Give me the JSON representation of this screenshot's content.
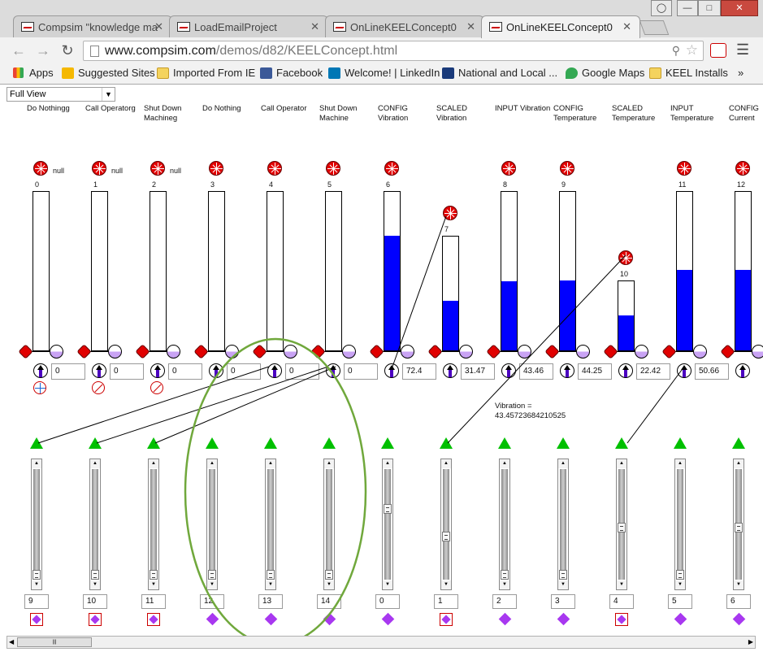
{
  "browser": {
    "tabs": [
      {
        "title": "Compsim \"knowledge ma",
        "active": false
      },
      {
        "title": "LoadEmailProject",
        "active": false
      },
      {
        "title": "OnLineKEELConcept0",
        "active": false
      },
      {
        "title": "OnLineKEELConcept0",
        "active": true
      }
    ],
    "url_host": "www.compsim.com",
    "url_path": "/demos/d82/KEELConcept.html",
    "bookmarks": [
      "Apps",
      "Suggested Sites",
      "Imported From IE",
      "Facebook",
      "Welcome! | LinkedIn",
      "National and Local ...",
      "Google Maps",
      "KEEL Installs"
    ],
    "bookmarks_more": "»"
  },
  "page": {
    "view_select": "Full View",
    "vibration_label": "Vibration =",
    "vibration_value": "43.45723684210525",
    "columns": [
      {
        "header": [
          "Do Nothingg"
        ],
        "index": "0",
        "null_label": "null",
        "fill": 0,
        "value": "0",
        "status": "plus",
        "bottom_number": "9",
        "bottom_marker": "box"
      },
      {
        "header": [
          "Call Operatorg"
        ],
        "index": "1",
        "null_label": "null",
        "fill": 0,
        "value": "0",
        "status": "no",
        "bottom_number": "10",
        "bottom_marker": "box"
      },
      {
        "header": [
          "Shut Down",
          "Machineg"
        ],
        "index": "2",
        "null_label": "null",
        "fill": 0,
        "value": "0",
        "status": "no",
        "bottom_number": "11",
        "bottom_marker": "box"
      },
      {
        "header": [
          "Do Nothing"
        ],
        "index": "3",
        "null_label": "",
        "fill": 0,
        "value": "0",
        "status": "",
        "bottom_number": "12",
        "bottom_marker": "diamond"
      },
      {
        "header": [
          "Call Operator"
        ],
        "index": "4",
        "null_label": "",
        "fill": 0,
        "value": "0",
        "status": "",
        "bottom_number": "13",
        "bottom_marker": "diamond"
      },
      {
        "header": [
          "Shut Down",
          "Machine"
        ],
        "index": "5",
        "null_label": "",
        "fill": 0,
        "value": "0",
        "status": "",
        "bottom_number": "14",
        "bottom_marker": "diamond"
      },
      {
        "header": [
          "CONFIG",
          "Vibration"
        ],
        "index": "6",
        "null_label": "",
        "fill": 0.724,
        "value": "72.4",
        "status": "",
        "bottom_number": "0",
        "bottom_marker": "diamond"
      },
      {
        "header": [
          "SCALED",
          "Vibration"
        ],
        "index": "7",
        "null_label": "",
        "fill": 0.4347,
        "value": "31.47",
        "status": "",
        "bottom_number": "1",
        "bottom_marker": "box"
      },
      {
        "header": [
          "INPUT Vibration"
        ],
        "index": "8",
        "null_label": "",
        "fill": 0.4346,
        "value": "43.46",
        "status": "",
        "bottom_number": "2",
        "bottom_marker": "diamond"
      },
      {
        "header": [
          "CONFIG",
          "Temperature"
        ],
        "index": "9",
        "null_label": "",
        "fill": 0.4425,
        "value": "44.25",
        "status": "",
        "bottom_number": "3",
        "bottom_marker": "diamond"
      },
      {
        "header": [
          "SCALED",
          "Temperature"
        ],
        "index": "10",
        "null_label": "",
        "fill": 0.5066,
        "value": "22.42",
        "status": "",
        "bottom_number": "4",
        "bottom_marker": "box"
      },
      {
        "header": [
          "INPUT",
          "Temperature"
        ],
        "index": "11",
        "null_label": "",
        "fill": 0.5066,
        "value": "50.66",
        "status": "",
        "bottom_number": "5",
        "bottom_marker": "diamond"
      },
      {
        "header": [
          "CONFIG",
          "Current"
        ],
        "index": "12",
        "null_label": "",
        "fill": 0.51,
        "value": "",
        "status": "",
        "bottom_number": "6",
        "bottom_marker": "diamond"
      }
    ],
    "slider_positions": [
      1,
      1,
      1,
      1,
      1,
      1,
      0.35,
      0.62,
      1,
      1,
      0.53,
      1,
      0.53
    ]
  }
}
